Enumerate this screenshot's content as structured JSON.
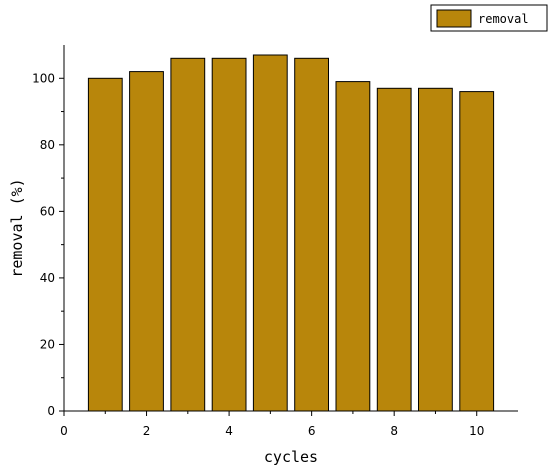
{
  "chart_data": {
    "type": "bar",
    "xlabel": "cycles",
    "ylabel": "removal (%)",
    "x": [
      1,
      2,
      3,
      4,
      5,
      6,
      7,
      8,
      9,
      10
    ],
    "series": [
      {
        "name": "removal",
        "values": [
          100,
          102,
          106,
          106,
          107,
          106,
          99,
          97,
          97,
          96
        ]
      }
    ],
    "xlim": [
      0,
      11
    ],
    "ylim": [
      0,
      110
    ],
    "xticks": [
      "0",
      "2",
      "4",
      "6",
      "8",
      "10"
    ],
    "yticks": [
      "0",
      "20",
      "40",
      "60",
      "80",
      "100"
    ],
    "legend_position": "top-right",
    "grid": false,
    "bar_color": "#b8860b",
    "edge_color": "#000000"
  }
}
